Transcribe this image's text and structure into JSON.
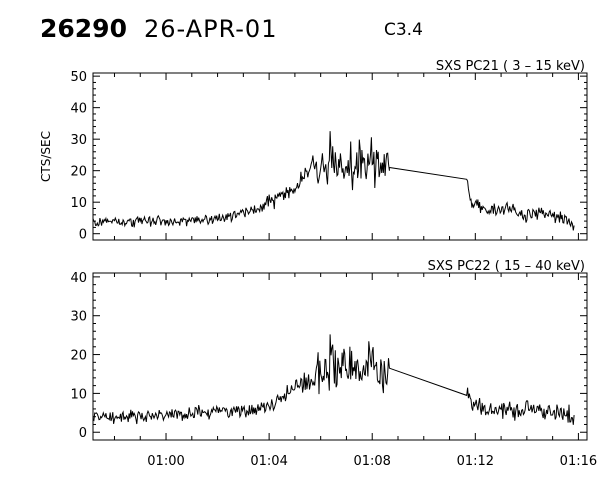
{
  "header": {
    "event_number": "26290",
    "date": "26-APR-01",
    "flare_class": "C3.4"
  },
  "chart_data": [
    {
      "type": "line",
      "title": "SXS PC21  (  3 – 15 keV)",
      "ylabel": "CTS/SEC",
      "xlabel": "",
      "xlim": [
        "00:57:10",
        "01:16:20"
      ],
      "ylim": [
        -2,
        51
      ],
      "yticks": [
        0,
        10,
        20,
        30,
        40,
        50
      ],
      "xticks": [
        "01:00",
        "01:04",
        "01:08",
        "01:12",
        "01:16"
      ],
      "grid": false,
      "data_gap": [
        "01:08:40",
        "01:11:40"
      ],
      "series": [
        {
          "x": [
            "00:57:10",
            "00:58:00",
            "00:59:00",
            "01:00:00",
            "01:01:00",
            "01:01:30",
            "01:02:00",
            "01:03:00",
            "01:03:30",
            "01:04:00",
            "01:04:30",
            "01:05:00",
            "01:05:20",
            "01:05:40",
            "01:06:00",
            "01:06:30",
            "01:07:00",
            "01:07:30",
            "01:08:00",
            "01:08:30",
            "01:08:40",
            "01:11:40",
            "01:11:50",
            "01:12:30",
            "01:13:00",
            "01:13:30",
            "01:14:00",
            "01:14:30",
            "01:15:00",
            "01:15:30",
            "01:15:50"
          ],
          "values": [
            3.5,
            4,
            4,
            4,
            4,
            4.5,
            5,
            6.5,
            7.5,
            10,
            12,
            14,
            18,
            22,
            21,
            23,
            22,
            22,
            22,
            20,
            21,
            17.5,
            10,
            7,
            8,
            7,
            6,
            6.5,
            6,
            4.5,
            3
          ]
        }
      ]
    },
    {
      "type": "line",
      "title": "SXS PC22  ( 15 – 40 keV)",
      "ylabel": "",
      "xlabel": "",
      "xlim": [
        "00:57:10",
        "01:16:20"
      ],
      "ylim": [
        -2,
        41
      ],
      "yticks": [
        0,
        10,
        20,
        30,
        40
      ],
      "xticks": [
        "01:00",
        "01:04",
        "01:08",
        "01:12",
        "01:16"
      ],
      "grid": false,
      "data_gap": [
        "01:08:40",
        "01:11:40"
      ],
      "series": [
        {
          "x": [
            "00:57:10",
            "00:58:00",
            "00:59:00",
            "01:00:00",
            "01:01:00",
            "01:01:30",
            "01:02:00",
            "01:03:00",
            "01:03:30",
            "01:04:00",
            "01:04:30",
            "01:05:00",
            "01:05:20",
            "01:05:40",
            "01:06:00",
            "01:06:30",
            "01:07:00",
            "01:07:30",
            "01:08:00",
            "01:08:30",
            "01:08:40",
            "01:11:40",
            "01:11:50",
            "01:12:30",
            "01:13:00",
            "01:13:30",
            "01:14:00",
            "01:14:30",
            "01:15:00",
            "01:15:30",
            "01:15:50"
          ],
          "values": [
            4,
            4,
            4,
            4.5,
            5,
            5,
            5.5,
            5.5,
            6,
            6.5,
            8.5,
            12,
            13,
            12.5,
            15,
            17,
            17,
            16.5,
            17,
            15,
            16.5,
            10.5,
            8,
            6,
            6,
            5.5,
            5.5,
            5.5,
            5,
            4.5,
            3.5
          ]
        }
      ]
    }
  ]
}
